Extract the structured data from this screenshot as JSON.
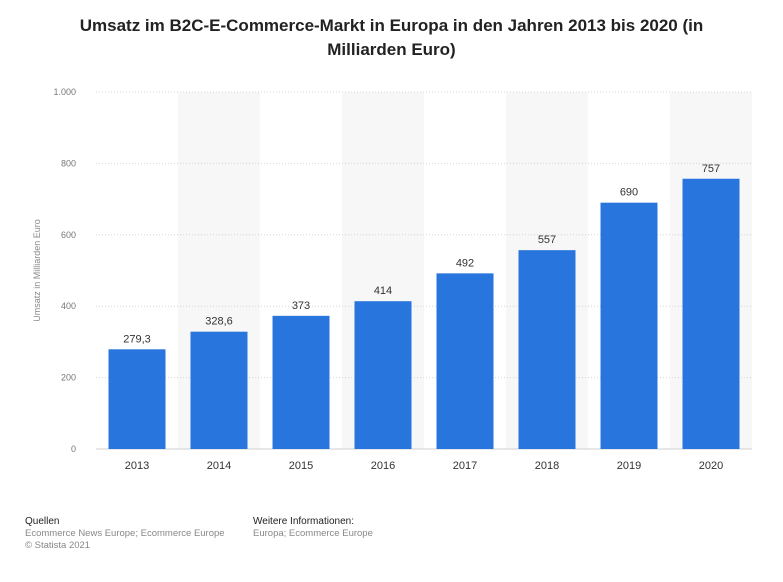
{
  "chart_data": {
    "type": "bar",
    "title": "Umsatz im B2C-E-Commerce-Markt in Europa in den Jahren 2013 bis 2020 (in Milliarden Euro)",
    "xlabel": "",
    "ylabel": "Umsatz in Milliarden Euro",
    "categories": [
      "2013",
      "2014",
      "2015",
      "2016",
      "2017",
      "2018",
      "2019",
      "2020"
    ],
    "values": [
      279.3,
      328.6,
      373,
      414,
      492,
      557,
      690,
      757
    ],
    "value_labels": [
      "279,3",
      "328,6",
      "373",
      "414",
      "492",
      "557",
      "690",
      "757"
    ],
    "ylim": [
      0,
      1000
    ],
    "yticks": [
      0,
      200,
      400,
      600,
      800,
      1000
    ],
    "ytick_labels": [
      "0",
      "200",
      "400",
      "600",
      "800",
      "1.000"
    ],
    "bar_color": "#2876dd",
    "grid": true
  },
  "footer": {
    "sources_heading": "Quellen",
    "sources_line1": "Ecommerce News Europe; Ecommerce Europe",
    "sources_line2": "© Statista 2021",
    "info_heading": "Weitere Informationen:",
    "info_line1": "Europa; Ecommerce Europe"
  }
}
